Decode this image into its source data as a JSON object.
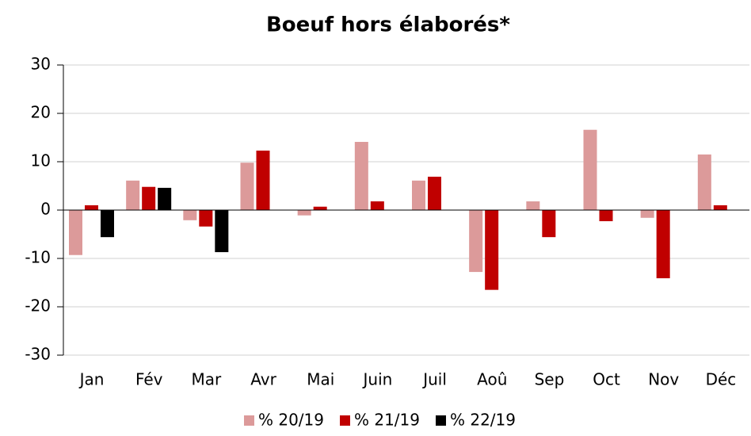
{
  "chart_data": {
    "type": "bar",
    "title": "Boeuf hors élaborés*",
    "categories": [
      "Jan",
      "Fév",
      "Mar",
      "Avr",
      "Mai",
      "Juin",
      "Juil",
      "Aoû",
      "Sep",
      "Oct",
      "Nov",
      "Déc"
    ],
    "series": [
      {
        "name": "% 20/19",
        "color": "#dc9a9a",
        "values": [
          -9.3,
          6.1,
          -2.1,
          9.8,
          -1.1,
          14.1,
          6.1,
          -12.8,
          1.8,
          16.6,
          -1.6,
          11.5
        ]
      },
      {
        "name": "% 21/19",
        "color": "#c00000",
        "values": [
          1,
          4.8,
          -3.4,
          12.3,
          0.7,
          1.8,
          6.9,
          -16.5,
          -5.6,
          -2.3,
          -14.1,
          1
        ]
      },
      {
        "name": "% 22/19",
        "color": "#000000",
        "values": [
          -5.6,
          4.6,
          -8.7,
          null,
          null,
          null,
          null,
          null,
          null,
          null,
          null,
          null
        ]
      }
    ],
    "ylim": [
      -30,
      30
    ],
    "yticks": [
      -30,
      -20,
      -10,
      0,
      10,
      20,
      30
    ],
    "grid": true
  }
}
